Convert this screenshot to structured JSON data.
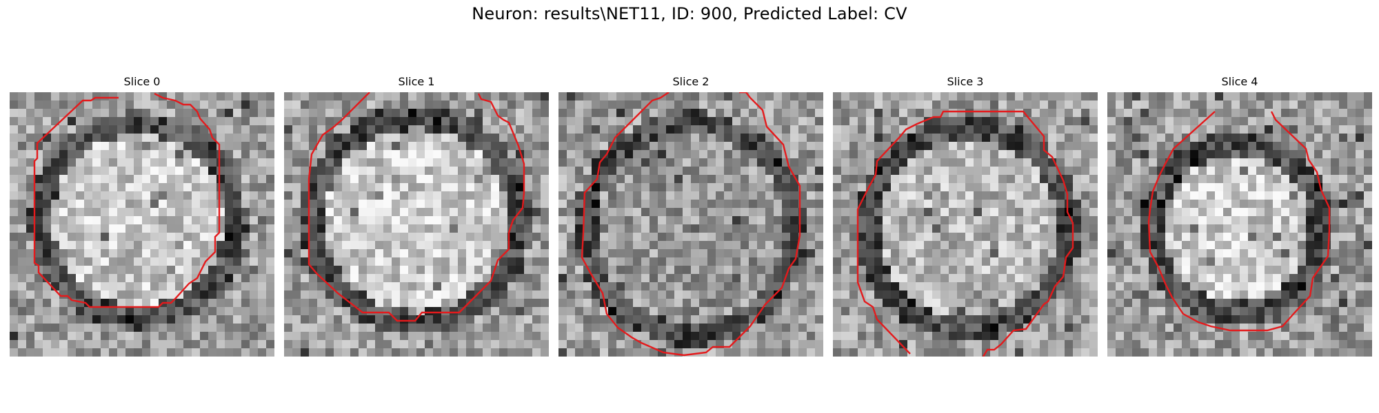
{
  "figure": {
    "title": "Neuron: results\\NET11, ID: 900, Predicted Label: CV"
  },
  "colors": {
    "contour": "#e41a1c",
    "background": "#ffffff"
  },
  "slices": [
    {
      "title": "Slice 0"
    },
    {
      "title": "Slice 1"
    },
    {
      "title": "Slice 2"
    },
    {
      "title": "Slice 3"
    },
    {
      "title": "Slice 4"
    }
  ]
}
